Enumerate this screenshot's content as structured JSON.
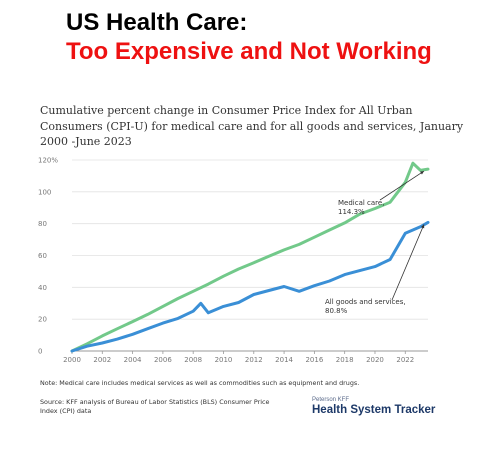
{
  "slide": {
    "title": "US Health Care:",
    "subtitle": "Too Expensive and Not Working"
  },
  "chart_data": {
    "type": "line",
    "title": "Cumulative percent change in Consumer Price Index for All Urban Consumers (CPI-U) for medical care and for all goods and services, January 2000 -June 2023",
    "xlim": [
      2000,
      2023.5
    ],
    "ylim": [
      0,
      120
    ],
    "grid": true,
    "x_ticks": [
      "2000",
      "2002",
      "2004",
      "2006",
      "2008",
      "2010",
      "2012",
      "2014",
      "2016",
      "2018",
      "2020",
      "2022"
    ],
    "y_ticks": [
      "0",
      "20",
      "40",
      "60",
      "80",
      "100",
      "120%"
    ],
    "series": [
      {
        "name": "Medical care",
        "color": "#72c98a",
        "x": [
          2000,
          2001,
          2002,
          2003,
          2004,
          2005,
          2006,
          2007,
          2008,
          2009,
          2010,
          2011,
          2012,
          2013,
          2014,
          2015,
          2016,
          2017,
          2018,
          2019,
          2020,
          2021,
          2022,
          2022.5,
          2023,
          2023.5
        ],
        "y": [
          0,
          4.5,
          9.5,
          14,
          18.5,
          23,
          28,
          33,
          37.5,
          42,
          47,
          51.5,
          55.5,
          59.5,
          63.5,
          67,
          71.5,
          76,
          80.5,
          86,
          89.5,
          93.5,
          106,
          118,
          113.5,
          114.3
        ],
        "end_label": [
          "Medical care,",
          "114.3%"
        ]
      },
      {
        "name": "All goods and services",
        "color": "#3a8fd6",
        "x": [
          2000,
          2001,
          2002,
          2003,
          2004,
          2005,
          2006,
          2007,
          2008,
          2008.5,
          2009,
          2010,
          2011,
          2012,
          2013,
          2014,
          2015,
          2016,
          2017,
          2018,
          2019,
          2020,
          2021,
          2022,
          2023,
          2023.5
        ],
        "y": [
          0,
          3,
          5,
          7.5,
          10.5,
          14,
          17.5,
          20.5,
          25,
          30,
          24,
          28,
          30.5,
          35.5,
          38,
          40.5,
          37.5,
          41,
          44,
          48,
          50.5,
          53,
          57.5,
          74,
          78,
          80.8
        ],
        "end_label": [
          "All goods and services,",
          "80.8%"
        ]
      }
    ],
    "note": "Note: Medical care includes medical services as well as commodities such as equipment and drugs.",
    "source": "Source: KFF analysis of Bureau of Labor Statistics (BLS) Consumer Price Index (CPI) data"
  },
  "branding": {
    "small": "Peterson KFF",
    "main": "Health System Tracker"
  }
}
